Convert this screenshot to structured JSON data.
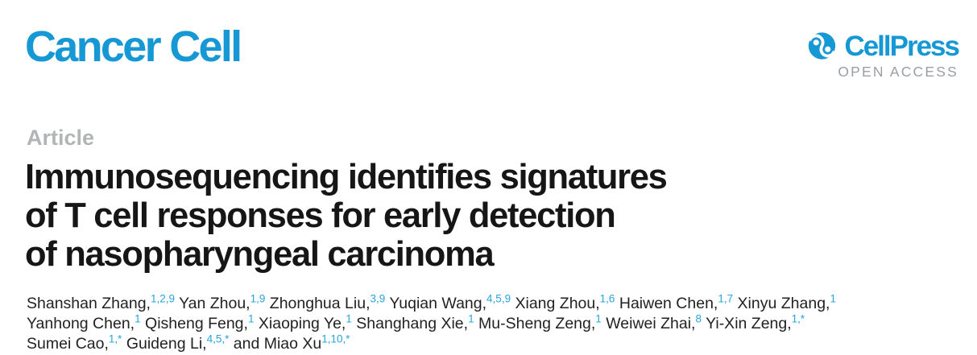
{
  "colors": {
    "brand_blue": "#1598d4",
    "superscript_blue": "#2aa4dc",
    "title_black": "#161616",
    "body_black": "#222222",
    "label_gray": "#b2b4b6",
    "open_access_gray": "#9b9ea2"
  },
  "header": {
    "journal_name": "Cancer Cell",
    "publisher_name": "CellPress",
    "open_access_label": "OPEN ACCESS"
  },
  "article": {
    "type_label": "Article",
    "title": "Immunosequencing identifies signatures\nof T cell responses for early detection\nof nasopharyngeal carcinoma"
  },
  "authors": {
    "lines": [
      [
        {
          "name": "Shanshan Zhang,",
          "sup": "1,2,9"
        },
        {
          "name": "Yan Zhou,",
          "sup": "1,9"
        },
        {
          "name": "Zhonghua Liu,",
          "sup": "3,9"
        },
        {
          "name": "Yuqian Wang,",
          "sup": "4,5,9"
        },
        {
          "name": "Xiang Zhou,",
          "sup": "1,6"
        },
        {
          "name": "Haiwen Chen,",
          "sup": "1,7"
        },
        {
          "name": "Xinyu Zhang,",
          "sup": "1"
        }
      ],
      [
        {
          "name": "Yanhong Chen,",
          "sup": "1"
        },
        {
          "name": "Qisheng Feng,",
          "sup": "1"
        },
        {
          "name": "Xiaoping Ye,",
          "sup": "1"
        },
        {
          "name": "Shanghang Xie,",
          "sup": "1"
        },
        {
          "name": "Mu-Sheng Zeng,",
          "sup": "1"
        },
        {
          "name": "Weiwei Zhai,",
          "sup": "8"
        },
        {
          "name": "Yi-Xin Zeng,",
          "sup": "1,*"
        }
      ],
      [
        {
          "name": "Sumei Cao,",
          "sup": "1,*"
        },
        {
          "name": "Guideng Li,",
          "sup": "4,5,*"
        },
        {
          "name": "and Miao Xu",
          "sup": "1,10,*"
        }
      ]
    ]
  }
}
